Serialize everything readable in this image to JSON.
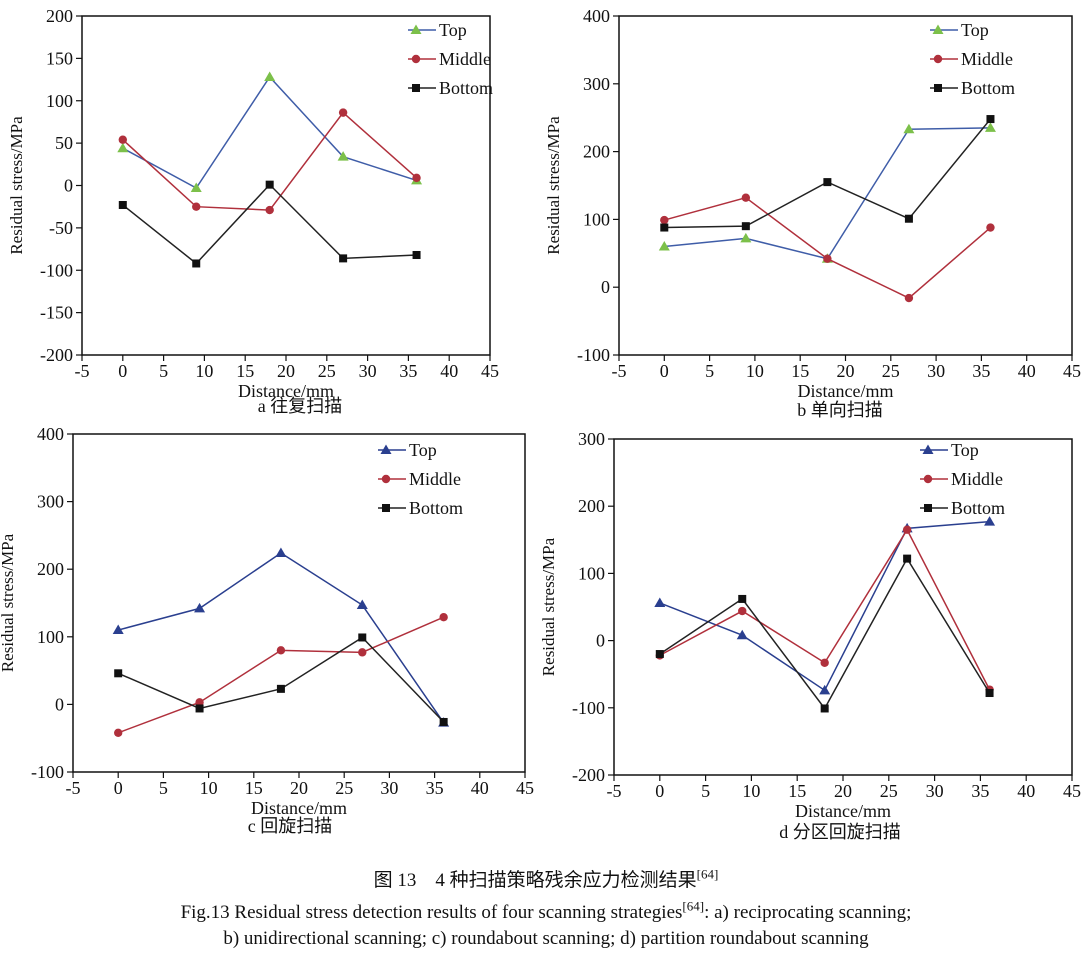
{
  "chart_data": [
    {
      "type": "line",
      "subtitle": "a 往复扫描",
      "xlabel": "Distance/mm",
      "ylabel": "Residual stress/MPa",
      "x": [
        0,
        9,
        18,
        27,
        36
      ],
      "xlim": [
        -5,
        45
      ],
      "xticks": [
        -5,
        0,
        5,
        10,
        15,
        20,
        25,
        30,
        35,
        40,
        45
      ],
      "ylim": [
        -200,
        200
      ],
      "yticks": [
        -200,
        -150,
        -100,
        -50,
        0,
        50,
        100,
        150,
        200
      ],
      "series": [
        {
          "name": "Top",
          "color": "#3f5da8",
          "marker_color": "#7cc04a",
          "marker": "triangle",
          "values": [
            44,
            -3,
            128,
            34,
            6
          ]
        },
        {
          "name": "Middle",
          "color": "#b0303c",
          "marker_color": "#b0303c",
          "marker": "circle",
          "values": [
            54,
            -25,
            -29,
            86,
            9
          ]
        },
        {
          "name": "Bottom",
          "color": "#222222",
          "marker_color": "#111111",
          "marker": "square",
          "values": [
            -23,
            -92,
            1,
            -86,
            -82
          ]
        }
      ]
    },
    {
      "type": "line",
      "subtitle": "b 单向扫描",
      "xlabel": "Distance/mm",
      "ylabel": "Residual stress/MPa",
      "x": [
        0,
        9,
        18,
        27,
        36
      ],
      "xlim": [
        -5,
        45
      ],
      "xticks": [
        -5,
        0,
        5,
        10,
        15,
        20,
        25,
        30,
        35,
        40,
        45
      ],
      "ylim": [
        -100,
        400
      ],
      "yticks": [
        -100,
        0,
        100,
        200,
        300,
        400
      ],
      "series": [
        {
          "name": "Top",
          "color": "#3f5da8",
          "marker_color": "#7cc04a",
          "marker": "triangle",
          "values": [
            60,
            72,
            42,
            233,
            235
          ]
        },
        {
          "name": "Middle",
          "color": "#b0303c",
          "marker_color": "#b0303c",
          "marker": "circle",
          "values": [
            99,
            132,
            42,
            -16,
            88
          ]
        },
        {
          "name": "Bottom",
          "color": "#222222",
          "marker_color": "#111111",
          "marker": "square",
          "values": [
            88,
            90,
            155,
            101,
            248
          ]
        }
      ]
    },
    {
      "type": "line",
      "subtitle": "c 回旋扫描",
      "xlabel": "Distance/mm",
      "ylabel": "Residual stress/MPa",
      "x": [
        0,
        9,
        18,
        27,
        36
      ],
      "xlim": [
        -5,
        45
      ],
      "xticks": [
        -5,
        0,
        5,
        10,
        15,
        20,
        25,
        30,
        35,
        40,
        45
      ],
      "ylim": [
        -100,
        400
      ],
      "yticks": [
        -100,
        0,
        100,
        200,
        300,
        400
      ],
      "series": [
        {
          "name": "Top",
          "color": "#2a3f8f",
          "marker_color": "#2a3f8f",
          "marker": "triangle",
          "values": [
            110,
            142,
            224,
            147,
            -27
          ]
        },
        {
          "name": "Middle",
          "color": "#b0303c",
          "marker_color": "#b0303c",
          "marker": "circle",
          "values": [
            -42,
            3,
            80,
            77,
            129
          ]
        },
        {
          "name": "Bottom",
          "color": "#222222",
          "marker_color": "#111111",
          "marker": "square",
          "values": [
            46,
            -6,
            23,
            99,
            -26
          ]
        }
      ]
    },
    {
      "type": "line",
      "subtitle": "d 分区回旋扫描",
      "xlabel": "Distance/mm",
      "ylabel": "Residual stress/MPa",
      "x": [
        0,
        9,
        18,
        27,
        36
      ],
      "xlim": [
        -5,
        45
      ],
      "xticks": [
        -5,
        0,
        5,
        10,
        15,
        20,
        25,
        30,
        35,
        40,
        45
      ],
      "ylim": [
        -200,
        300
      ],
      "yticks": [
        -200,
        -100,
        0,
        100,
        200,
        300
      ],
      "series": [
        {
          "name": "Top",
          "color": "#2a3f8f",
          "marker_color": "#2a3f8f",
          "marker": "triangle",
          "values": [
            56,
            8,
            -74,
            167,
            177
          ]
        },
        {
          "name": "Middle",
          "color": "#b0303c",
          "marker_color": "#b0303c",
          "marker": "circle",
          "values": [
            -22,
            44,
            -33,
            165,
            -73
          ]
        },
        {
          "name": "Bottom",
          "color": "#222222",
          "marker_color": "#111111",
          "marker": "square",
          "values": [
            -20,
            62,
            -101,
            122,
            -78
          ]
        }
      ]
    }
  ],
  "caption": {
    "cn": {
      "text": "图 13　4 种扫描策略残余应力检测结果",
      "ref": "[64]"
    },
    "en": {
      "text": "Fig.13 Residual stress detection results of four scanning strategies",
      "ref": "[64]",
      "rest": ": a) reciprocating scanning;",
      "line2": "b) unidirectional scanning; c) roundabout scanning; d) partition roundabout scanning"
    }
  }
}
